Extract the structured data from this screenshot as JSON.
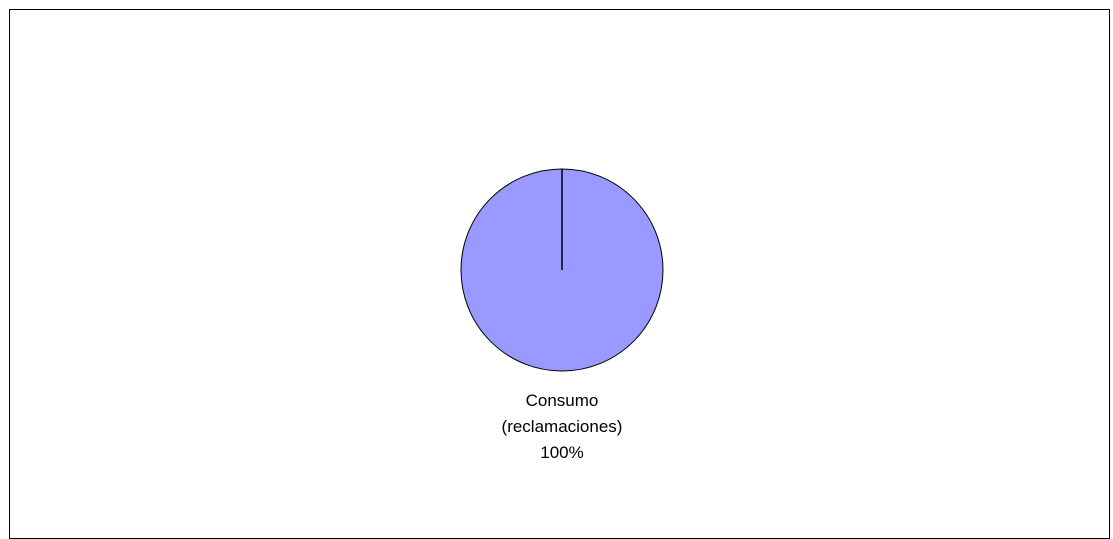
{
  "chart_data": {
    "type": "pie",
    "title": "",
    "slices": [
      {
        "label": "Consumo (reclamaciones)",
        "label_line1": "Consumo",
        "label_line2": "(reclamaciones)",
        "value": 100,
        "percent_label": "100%",
        "color": "#9999ff"
      }
    ],
    "legend": "none",
    "border_color": "#000000"
  }
}
